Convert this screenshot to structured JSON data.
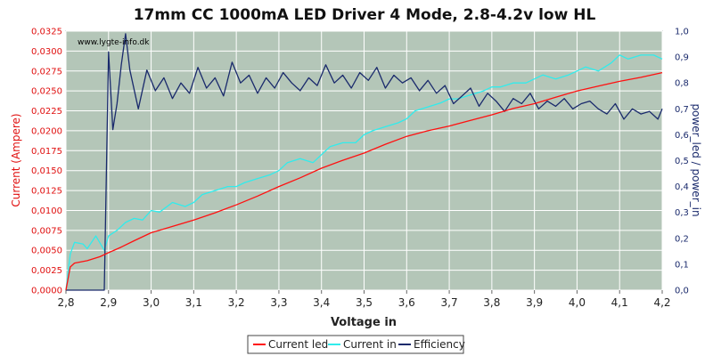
{
  "chart_data": {
    "type": "line",
    "title": "17mm CC 1000mA LED Driver 4 Mode, 2.8-4.2v low HL",
    "watermark": "www.lygte-info.dk",
    "xlabel": "Voltage in",
    "ylabel_left": "Current (Ampere)",
    "ylabel_right": "power_led / power_in",
    "xlim": [
      2.8,
      4.2
    ],
    "ylim_left": [
      0,
      0.0325
    ],
    "ylim_right": [
      0,
      1.0
    ],
    "x_ticks": [
      "2,8",
      "2,9",
      "3,0",
      "3,1",
      "3,2",
      "3,3",
      "3,4",
      "3,5",
      "3,6",
      "3,7",
      "3,8",
      "3,9",
      "4,0",
      "4,1",
      "4,2"
    ],
    "y_left_ticks": [
      "0,0000",
      "0,0025",
      "0,0050",
      "0,0075",
      "0,0100",
      "0,0125",
      "0,0150",
      "0,0175",
      "0,0200",
      "0,0225",
      "0,0250",
      "0,0275",
      "0,0300",
      "0,0325"
    ],
    "y_right_ticks": [
      "0,0",
      "0,1",
      "0,2",
      "0,3",
      "0,4",
      "0,5",
      "0,6",
      "0,7",
      "0,8",
      "0,9",
      "1,0"
    ],
    "grid": true,
    "legend_position": "bottom-center",
    "colors": {
      "plot_background": "#b4c6b8",
      "grid": "#ffffff",
      "current_led": "#ff1010",
      "current_in": "#30ecec",
      "efficiency": "#1a2a6c"
    },
    "series": [
      {
        "name": "Current led",
        "axis": "left",
        "x": [
          2.8,
          2.81,
          2.82,
          2.85,
          2.88,
          2.9,
          2.93,
          2.96,
          3.0,
          3.05,
          3.1,
          3.15,
          3.2,
          3.25,
          3.3,
          3.35,
          3.4,
          3.45,
          3.5,
          3.55,
          3.6,
          3.65,
          3.7,
          3.75,
          3.8,
          3.85,
          3.9,
          3.95,
          4.0,
          4.05,
          4.1,
          4.15,
          4.2
        ],
        "values": [
          0.0,
          0.0029,
          0.0034,
          0.0037,
          0.0042,
          0.0047,
          0.0054,
          0.0062,
          0.0072,
          0.008,
          0.0088,
          0.0097,
          0.0107,
          0.0118,
          0.013,
          0.0141,
          0.0153,
          0.0163,
          0.0172,
          0.0183,
          0.0193,
          0.02,
          0.0206,
          0.0213,
          0.022,
          0.0228,
          0.0234,
          0.0242,
          0.025,
          0.0256,
          0.0262,
          0.0267,
          0.0273
        ]
      },
      {
        "name": "Current in",
        "axis": "left",
        "x": [
          2.8,
          2.81,
          2.82,
          2.84,
          2.85,
          2.87,
          2.89,
          2.9,
          2.92,
          2.94,
          2.96,
          2.98,
          3.0,
          3.02,
          3.05,
          3.08,
          3.1,
          3.12,
          3.15,
          3.18,
          3.2,
          3.22,
          3.25,
          3.28,
          3.3,
          3.32,
          3.35,
          3.38,
          3.4,
          3.42,
          3.45,
          3.48,
          3.5,
          3.52,
          3.55,
          3.58,
          3.6,
          3.62,
          3.65,
          3.68,
          3.7,
          3.72,
          3.75,
          3.78,
          3.8,
          3.82,
          3.85,
          3.88,
          3.9,
          3.92,
          3.95,
          3.98,
          4.0,
          4.02,
          4.05,
          4.08,
          4.1,
          4.12,
          4.15,
          4.18,
          4.2
        ],
        "values": [
          0.0,
          0.0045,
          0.006,
          0.0058,
          0.0052,
          0.0068,
          0.005,
          0.0068,
          0.0075,
          0.0085,
          0.009,
          0.0088,
          0.01,
          0.0098,
          0.011,
          0.0105,
          0.011,
          0.012,
          0.0125,
          0.013,
          0.013,
          0.0135,
          0.014,
          0.0145,
          0.015,
          0.016,
          0.0165,
          0.016,
          0.017,
          0.018,
          0.0185,
          0.0185,
          0.0195,
          0.02,
          0.0205,
          0.021,
          0.0215,
          0.0225,
          0.023,
          0.0235,
          0.024,
          0.024,
          0.0245,
          0.025,
          0.0255,
          0.0255,
          0.026,
          0.026,
          0.0265,
          0.027,
          0.0265,
          0.027,
          0.0275,
          0.028,
          0.0275,
          0.0285,
          0.0295,
          0.029,
          0.0295,
          0.0295,
          0.029
        ]
      },
      {
        "name": "Efficiency",
        "axis": "right",
        "x": [
          2.8,
          2.85,
          2.89,
          2.9,
          2.91,
          2.92,
          2.93,
          2.94,
          2.95,
          2.97,
          2.99,
          3.01,
          3.03,
          3.05,
          3.07,
          3.09,
          3.11,
          3.13,
          3.15,
          3.17,
          3.19,
          3.21,
          3.23,
          3.25,
          3.27,
          3.29,
          3.31,
          3.33,
          3.35,
          3.37,
          3.39,
          3.41,
          3.43,
          3.45,
          3.47,
          3.49,
          3.51,
          3.53,
          3.55,
          3.57,
          3.59,
          3.61,
          3.63,
          3.65,
          3.67,
          3.69,
          3.71,
          3.73,
          3.75,
          3.77,
          3.79,
          3.81,
          3.83,
          3.85,
          3.87,
          3.89,
          3.91,
          3.93,
          3.95,
          3.97,
          3.99,
          4.01,
          4.03,
          4.05,
          4.07,
          4.09,
          4.11,
          4.13,
          4.15,
          4.17,
          4.19,
          4.2
        ],
        "values": [
          0.0,
          0.0,
          0.0,
          0.92,
          0.62,
          0.72,
          0.87,
          0.99,
          0.85,
          0.7,
          0.85,
          0.77,
          0.82,
          0.74,
          0.8,
          0.76,
          0.86,
          0.78,
          0.82,
          0.75,
          0.88,
          0.8,
          0.83,
          0.76,
          0.82,
          0.78,
          0.84,
          0.8,
          0.77,
          0.82,
          0.79,
          0.87,
          0.8,
          0.83,
          0.78,
          0.84,
          0.81,
          0.86,
          0.78,
          0.83,
          0.8,
          0.82,
          0.77,
          0.81,
          0.76,
          0.79,
          0.72,
          0.75,
          0.78,
          0.71,
          0.76,
          0.73,
          0.69,
          0.74,
          0.72,
          0.76,
          0.7,
          0.73,
          0.71,
          0.74,
          0.7,
          0.72,
          0.73,
          0.7,
          0.68,
          0.72,
          0.66,
          0.7,
          0.68,
          0.69,
          0.66,
          0.7
        ]
      }
    ]
  }
}
